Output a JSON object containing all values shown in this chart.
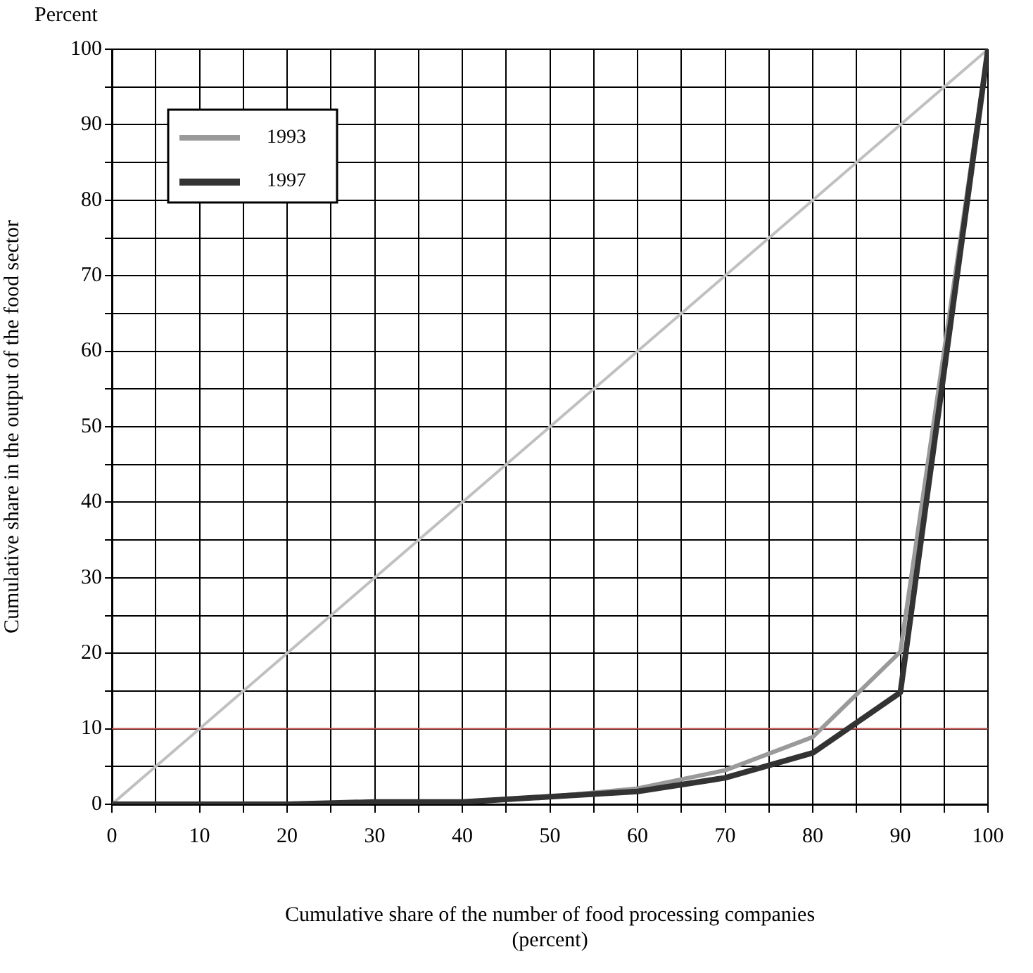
{
  "chart_data": {
    "type": "line",
    "ylabel": "Cumulative share in the output of the food sector",
    "xlabel": "Cumulative share of the number of food processing companies\n(percent)",
    "annotations": [
      "Percent"
    ],
    "x": [
      0,
      10,
      20,
      30,
      40,
      50,
      60,
      70,
      80,
      90,
      100
    ],
    "series": [
      {
        "type": "line",
        "color": "#c0c0c0",
        "x": [
          0,
          100
        ],
        "values": [
          0,
          100
        ]
      },
      {
        "name": "1993",
        "color": "#9a9a9a",
        "values": [
          0,
          0,
          0,
          0.3,
          0.3,
          1,
          2.1,
          4.5,
          8.9,
          20.2,
          100
        ]
      },
      {
        "name": "1997",
        "color": "#333333",
        "values": [
          0,
          0,
          0,
          0.3,
          0.3,
          1,
          1.7,
          3.5,
          6.8,
          14.8,
          100
        ]
      }
    ],
    "xlim": [
      0,
      100
    ],
    "ylim": [
      0,
      100
    ],
    "xticks": [
      0,
      {
        "value": 5,
        "label": null
      },
      10,
      {
        "value": 15,
        "label": null
      },
      20,
      {
        "value": 25,
        "label": null
      },
      30,
      {
        "value": 35,
        "label": null
      },
      40,
      {
        "value": 45,
        "label": null
      },
      50,
      {
        "value": 55,
        "label": null
      },
      60,
      {
        "value": 65,
        "label": null
      },
      70,
      {
        "value": 75,
        "label": null
      },
      80,
      {
        "value": 85,
        "label": null
      },
      90,
      {
        "value": 95,
        "label": null
      },
      100
    ],
    "yticks": [
      0,
      {
        "value": 5,
        "label": null
      },
      10,
      {
        "value": 15,
        "label": null
      },
      20,
      {
        "value": 25,
        "label": null
      },
      30,
      {
        "value": 35,
        "label": null
      },
      40,
      {
        "value": 45,
        "label": null
      },
      50,
      {
        "value": 55,
        "label": null
      },
      60,
      {
        "value": 65,
        "label": null
      },
      70,
      {
        "value": 75,
        "label": null
      },
      80,
      {
        "value": 85,
        "label": null
      },
      90,
      {
        "value": 95,
        "label": null
      },
      100
    ],
    "ref_lines": [
      {
        "axis": "y",
        "value": 10,
        "color": "#c0504d"
      }
    ],
    "grid": true,
    "legend": "top left",
    "marker": "none",
    "line_style": "solid"
  }
}
